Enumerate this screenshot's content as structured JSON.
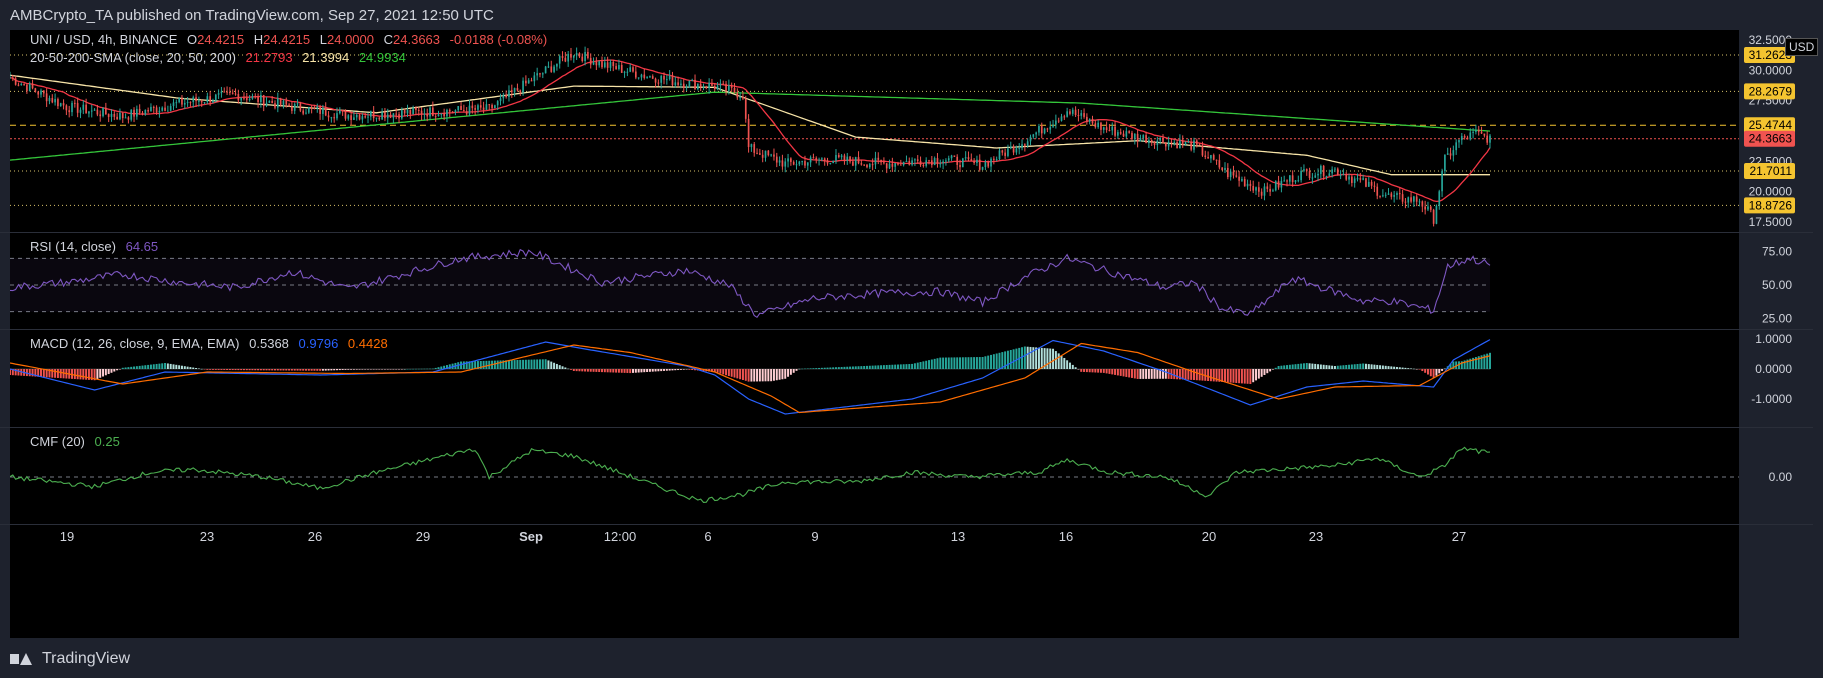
{
  "header": {
    "text": "AMBCrypto_TA published on TradingView.com, Sep 27, 2021 12:50 UTC"
  },
  "footer": {
    "brand": "TradingView"
  },
  "price_pane": {
    "symbol": "UNI / USD, 4h, BINANCE",
    "ohlc": {
      "o": "O",
      "o_val": "24.4215",
      "h": "H",
      "h_val": "24.4215",
      "l": "L",
      "l_val": "24.0000",
      "c": "C",
      "c_val": "24.3663",
      "chg": "-0.0188 (-0.08%)"
    },
    "sma_label": "20-50-200-SMA (close, 20, 50, 200)",
    "sma_vals": [
      "21.2793",
      "21.3994",
      "24.9934"
    ],
    "currency": "USD",
    "axis_ticks": [
      "32.5000",
      "30.0000",
      "27.5000",
      "22.5000",
      "20.0000",
      "17.5000"
    ],
    "level_labels": [
      {
        "label": "31.2623",
        "value": 31.2623,
        "bg": "#f4c430",
        "fg": "#000000",
        "line": "dotted"
      },
      {
        "label": "28.2679",
        "value": 28.2679,
        "bg": "#f4c430",
        "fg": "#000000",
        "line": "dotted"
      },
      {
        "label": "25.4744",
        "value": 25.4744,
        "bg": "#f4c430",
        "fg": "#000000",
        "line": "dashed"
      },
      {
        "label": "24.3663",
        "value": 24.3663,
        "bg": "#f05350",
        "fg": "#000000",
        "line": "red"
      },
      {
        "label": "21.7011",
        "value": 21.7011,
        "bg": "#f4c430",
        "fg": "#000000",
        "line": "dotted"
      },
      {
        "label": "18.8726",
        "value": 18.8726,
        "bg": "#f4c430",
        "fg": "#000000",
        "line": "dotted"
      }
    ]
  },
  "rsi_pane": {
    "label": "RSI (14, close)",
    "value": "64.65",
    "axis_ticks": [
      "75.00",
      "50.00",
      "25.00"
    ]
  },
  "macd_pane": {
    "label": "MACD (12, 26, close, 9, EMA, EMA)",
    "vals": [
      "0.5368",
      "0.9796",
      "0.4428"
    ],
    "axis_ticks": [
      "1.0000",
      "0.0000",
      "-1.0000"
    ]
  },
  "cmf_pane": {
    "label": "CMF (20)",
    "value": "0.25",
    "axis_ticks": [
      "0.00"
    ]
  },
  "x_axis": {
    "ticks": [
      "19",
      "23",
      "26",
      "29",
      "Sep",
      "12:00",
      "6",
      "9",
      "13",
      "16",
      "20",
      "23",
      "27"
    ]
  },
  "colors": {
    "up": "#26a69a",
    "down": "#ef5350",
    "sma20": "#f23645",
    "sma50": "#f7e4a8",
    "sma200": "#34c53a",
    "rsi": "#7e57c2",
    "macd": "#2962ff",
    "signal": "#ff6d00",
    "hist_up": "#26a69a",
    "hist_down": "#ef5350",
    "cmf": "#4caf50"
  },
  "chart_data": {
    "type": "candlestick",
    "price_anchors": [
      [
        0,
        29.4
      ],
      [
        20,
        27.0
      ],
      [
        40,
        26.2
      ],
      [
        60,
        27.3
      ],
      [
        80,
        28.0
      ],
      [
        100,
        27.0
      ],
      [
        120,
        26.3
      ],
      [
        140,
        26.5
      ],
      [
        170,
        26.8
      ],
      [
        185,
        29.2
      ],
      [
        200,
        31.5
      ],
      [
        210,
        30.5
      ],
      [
        225,
        29.6
      ],
      [
        238,
        29.0
      ],
      [
        250,
        28.7
      ],
      [
        260,
        28.0
      ],
      [
        262,
        23.6
      ],
      [
        275,
        22.3
      ],
      [
        290,
        22.7
      ],
      [
        310,
        22.3
      ],
      [
        330,
        22.7
      ],
      [
        345,
        22.2
      ],
      [
        360,
        24.2
      ],
      [
        368,
        25.5
      ],
      [
        375,
        26.7
      ],
      [
        388,
        25.2
      ],
      [
        400,
        24.5
      ],
      [
        420,
        23.8
      ],
      [
        432,
        21.5
      ],
      [
        445,
        20.0
      ],
      [
        458,
        21.5
      ],
      [
        470,
        21.8
      ],
      [
        480,
        20.7
      ],
      [
        490,
        19.5
      ],
      [
        500,
        19.3
      ],
      [
        505,
        17.8
      ],
      [
        509,
        22.6
      ],
      [
        514,
        24.2
      ],
      [
        520,
        24.8
      ],
      [
        525,
        24.36
      ]
    ],
    "sma200_anchors": [
      [
        0,
        22.6
      ],
      [
        250,
        28.2
      ],
      [
        380,
        27.3
      ],
      [
        525,
        24.99
      ]
    ],
    "sma50_anchors": [
      [
        0,
        29.6
      ],
      [
        60,
        27.7
      ],
      [
        130,
        26.5
      ],
      [
        200,
        28.7
      ],
      [
        250,
        28.6
      ],
      [
        300,
        24.5
      ],
      [
        350,
        23.6
      ],
      [
        400,
        24.2
      ],
      [
        460,
        23.0
      ],
      [
        490,
        21.4
      ],
      [
        525,
        21.4
      ]
    ],
    "rsi_anchors": [
      [
        0,
        48
      ],
      [
        20,
        52
      ],
      [
        40,
        58
      ],
      [
        60,
        52
      ],
      [
        80,
        48
      ],
      [
        100,
        60
      ],
      [
        120,
        47
      ],
      [
        160,
        70
      ],
      [
        185,
        75
      ],
      [
        210,
        52
      ],
      [
        240,
        61
      ],
      [
        255,
        50
      ],
      [
        265,
        27
      ],
      [
        285,
        40
      ],
      [
        310,
        44
      ],
      [
        330,
        45
      ],
      [
        345,
        37
      ],
      [
        360,
        56
      ],
      [
        375,
        70
      ],
      [
        390,
        60
      ],
      [
        410,
        48
      ],
      [
        420,
        52
      ],
      [
        430,
        32
      ],
      [
        440,
        28
      ],
      [
        455,
        55
      ],
      [
        470,
        45
      ],
      [
        480,
        38
      ],
      [
        490,
        38
      ],
      [
        505,
        31
      ],
      [
        510,
        64
      ],
      [
        518,
        70
      ],
      [
        525,
        65
      ]
    ],
    "macd_anchors": [
      [
        0,
        0.0
      ],
      [
        30,
        -0.7
      ],
      [
        55,
        -0.1
      ],
      [
        110,
        -0.2
      ],
      [
        150,
        -0.1
      ],
      [
        190,
        0.9
      ],
      [
        205,
        0.65
      ],
      [
        240,
        0.1
      ],
      [
        250,
        -0.2
      ],
      [
        262,
        -1.0
      ],
      [
        275,
        -1.5
      ],
      [
        320,
        -1.0
      ],
      [
        345,
        -0.3
      ],
      [
        370,
        0.95
      ],
      [
        388,
        0.6
      ],
      [
        410,
        -0.1
      ],
      [
        440,
        -1.2
      ],
      [
        460,
        -0.6
      ],
      [
        480,
        -0.4
      ],
      [
        505,
        -0.6
      ],
      [
        512,
        0.3
      ],
      [
        525,
        0.98
      ]
    ],
    "signal_anchors": [
      [
        0,
        0.2
      ],
      [
        40,
        -0.5
      ],
      [
        70,
        -0.1
      ],
      [
        120,
        -0.15
      ],
      [
        160,
        -0.1
      ],
      [
        200,
        0.8
      ],
      [
        220,
        0.55
      ],
      [
        250,
        -0.1
      ],
      [
        270,
        -0.9
      ],
      [
        280,
        -1.45
      ],
      [
        330,
        -1.1
      ],
      [
        360,
        -0.3
      ],
      [
        380,
        0.85
      ],
      [
        400,
        0.55
      ],
      [
        420,
        -0.1
      ],
      [
        450,
        -1.0
      ],
      [
        470,
        -0.6
      ],
      [
        500,
        -0.55
      ],
      [
        515,
        0.2
      ],
      [
        525,
        0.44
      ]
    ],
    "cmf_anchors": [
      [
        0,
        0.0
      ],
      [
        30,
        -0.1
      ],
      [
        50,
        0.05
      ],
      [
        65,
        0.08
      ],
      [
        90,
        0.0
      ],
      [
        110,
        -0.12
      ],
      [
        130,
        0.05
      ],
      [
        165,
        0.3
      ],
      [
        170,
        0.0
      ],
      [
        185,
        0.28
      ],
      [
        200,
        0.22
      ],
      [
        230,
        -0.1
      ],
      [
        245,
        -0.25
      ],
      [
        260,
        -0.18
      ],
      [
        275,
        -0.05
      ],
      [
        300,
        -0.05
      ],
      [
        320,
        0.05
      ],
      [
        340,
        0.0
      ],
      [
        365,
        0.05
      ],
      [
        375,
        0.18
      ],
      [
        390,
        0.05
      ],
      [
        410,
        0.0
      ],
      [
        425,
        -0.2
      ],
      [
        435,
        0.05
      ],
      [
        450,
        0.08
      ],
      [
        470,
        0.12
      ],
      [
        485,
        0.2
      ],
      [
        500,
        0.0
      ],
      [
        508,
        0.1
      ],
      [
        515,
        0.3
      ],
      [
        525,
        0.25
      ]
    ]
  }
}
